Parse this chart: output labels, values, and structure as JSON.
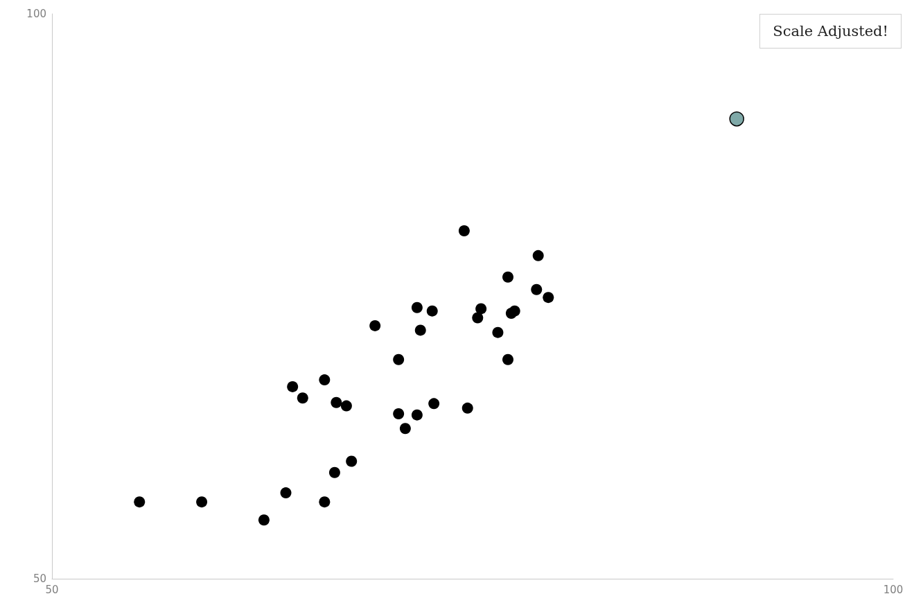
{
  "chart_data": {
    "type": "scatter",
    "marker": "circle",
    "xlim": [
      50,
      100
    ],
    "ylim": [
      50,
      100
    ],
    "xticks": [
      50,
      100
    ],
    "yticks": [
      50,
      100
    ],
    "annotations": [
      "Scale Adjusted!"
    ],
    "series": [
      {
        "color": "#000000",
        "x": [
          55.2,
          58.9,
          62.6,
          63.9,
          66.2,
          66.8,
          67.8,
          64.3,
          64.9,
          66.2,
          66.9,
          67.5,
          69.2,
          70.6,
          70.6,
          71.7,
          71.0,
          71.7,
          71.9,
          72.6,
          72.7,
          74.7,
          74.5,
          75.3,
          75.5,
          76.5,
          77.1,
          77.1,
          77.3,
          77.5,
          78.9,
          78.8,
          79.5
        ],
        "values": [
          56.8,
          56.8,
          55.2,
          57.6,
          56.8,
          59.4,
          60.4,
          67.0,
          66.0,
          67.6,
          65.6,
          65.3,
          72.4,
          69.4,
          64.6,
          64.5,
          63.3,
          74.0,
          72.0,
          73.7,
          65.5,
          65.1,
          80.8,
          73.1,
          73.9,
          71.8,
          69.4,
          76.7,
          73.5,
          73.7,
          78.6,
          75.6,
          74.9
        ]
      },
      {
        "color": "#7fa9a8",
        "x": [
          90.7
        ],
        "values": [
          90.7
        ]
      }
    ]
  }
}
